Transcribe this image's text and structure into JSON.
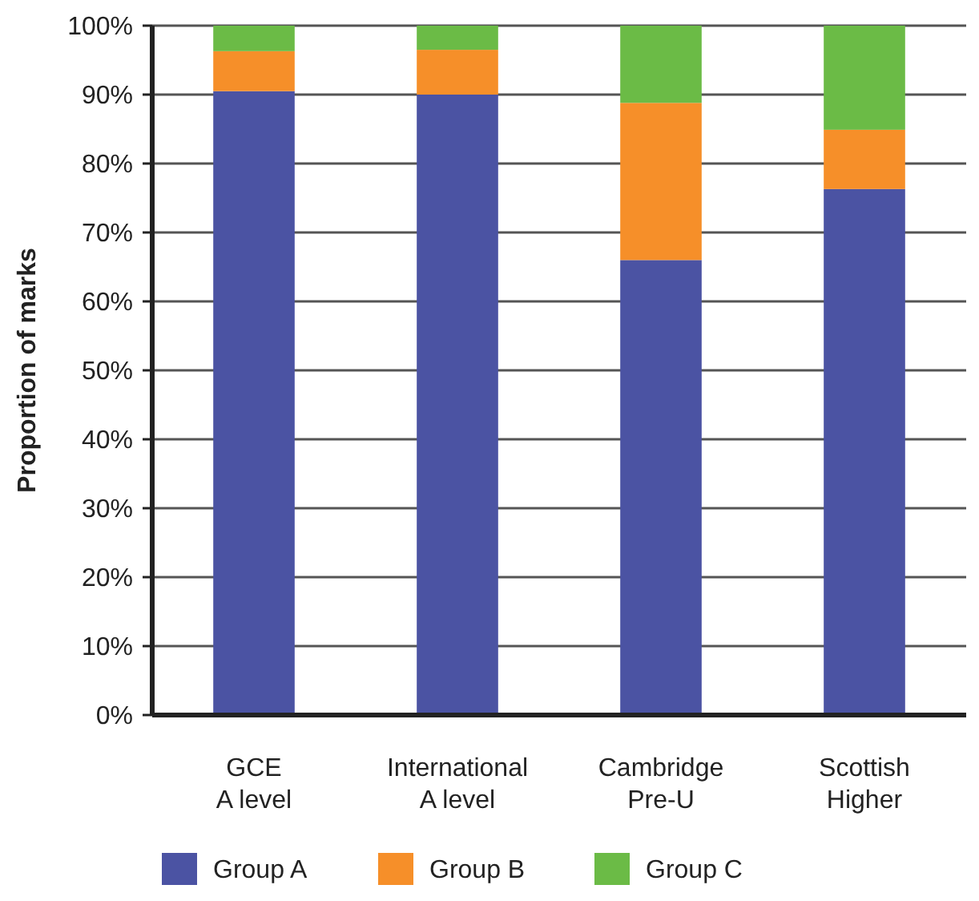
{
  "chart_data": {
    "type": "bar",
    "stacked": true,
    "ylabel": "Proportion of marks",
    "categories": [
      "GCE\nA level",
      "International\nA level",
      "Cambridge\nPre-U",
      "Scottish\nHigher"
    ],
    "series": [
      {
        "name": "Group A",
        "color": "#4b53a3",
        "values": [
          90.5,
          90,
          66,
          76.3
        ]
      },
      {
        "name": "Group B",
        "color": "#f68f29",
        "values": [
          5.8,
          6.5,
          22.8,
          8.6
        ]
      },
      {
        "name": "Group C",
        "color": "#6bbb46",
        "values": [
          3.7,
          3.5,
          11.2,
          15.1
        ]
      }
    ],
    "ylim": [
      0,
      100
    ],
    "yticks": [
      {
        "value": 0,
        "label": "0%"
      },
      {
        "value": 10,
        "label": "10%"
      },
      {
        "value": 20,
        "label": "20%"
      },
      {
        "value": 30,
        "label": "30%"
      },
      {
        "value": 40,
        "label": "40%"
      },
      {
        "value": 50,
        "label": "50%"
      },
      {
        "value": 60,
        "label": "60%"
      },
      {
        "value": 70,
        "label": "70%"
      },
      {
        "value": 80,
        "label": "80%"
      },
      {
        "value": 90,
        "label": "90%"
      },
      {
        "value": 100,
        "label": "100%"
      }
    ],
    "grid": "y",
    "legend": "bottom"
  }
}
